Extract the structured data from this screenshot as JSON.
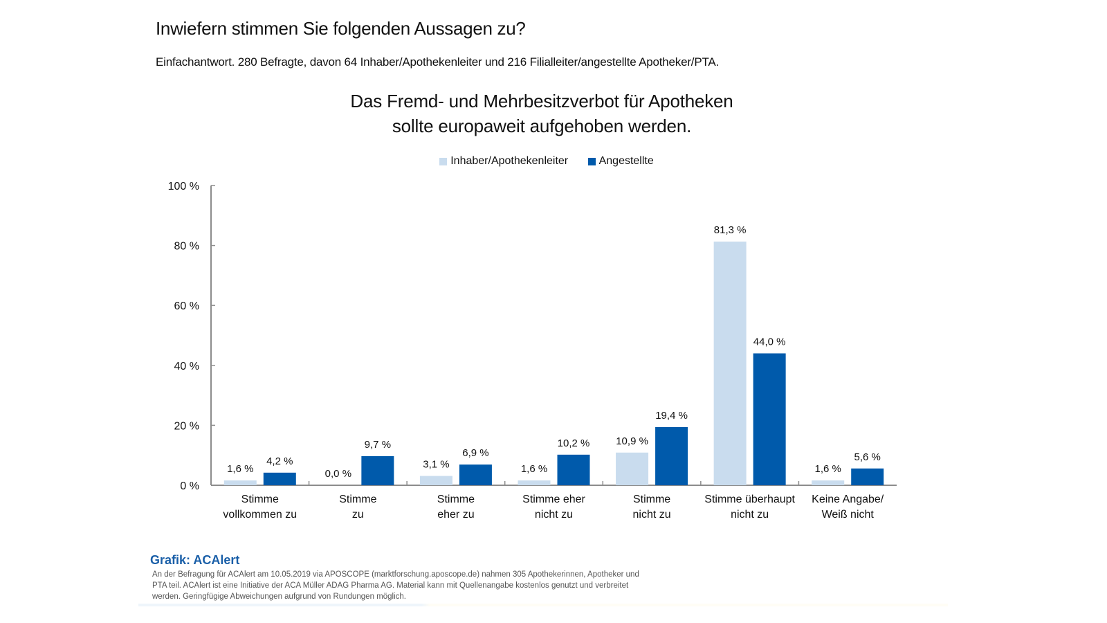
{
  "header": {
    "title": "Inwiefern stimmen Sie folgenden Aussagen zu?",
    "subtitle": "Einfachantwort. 280 Befragte, davon 64 Inhaber/Apothekenleiter und 216 Filialleiter/angestellte Apotheker/PTA."
  },
  "footer": {
    "source_title": "Grafik: ACAlert",
    "source_text": "An der Befragung für ACAlert am 10.05.2019 via APOSCOPE (marktforschung.aposcope.de) nahmen 305 Apothekerinnen, Apotheker und PTA teil. ACAlert ist eine Initiative der ACA Müller ADAG Pharma AG. Material kann mit Quellenangabe kostenlos genutzt und verbreitet werden. Geringfügige Abweichungen aufgrund von Rundungen möglich."
  },
  "chart_data": {
    "type": "bar",
    "title_lines": [
      "Das Fremd- und Mehrbesitzverbot für Apotheken",
      "sollte europaweit aufgehoben werden."
    ],
    "categories": [
      [
        "Stimme",
        "vollkommen zu"
      ],
      [
        "Stimme",
        "zu"
      ],
      [
        "Stimme",
        "eher zu"
      ],
      [
        "Stimme eher",
        "nicht zu"
      ],
      [
        "Stimme",
        "nicht zu"
      ],
      [
        "Stimme überhaupt",
        "nicht zu"
      ],
      [
        "Keine Angabe/",
        "Weiß nicht"
      ]
    ],
    "series": [
      {
        "name": "Inhaber/Apothekenleiter",
        "color": "#c9dcee",
        "values": [
          1.6,
          0.0,
          3.1,
          1.6,
          10.9,
          81.3,
          1.6
        ],
        "labels": [
          "1,6 %",
          "0,0 %",
          "3,1 %",
          "1,6 %",
          "10,9 %",
          "81,3 %",
          "1,6 %"
        ]
      },
      {
        "name": "Angestellte",
        "color": "#005aab",
        "values": [
          4.2,
          9.7,
          6.9,
          10.2,
          19.4,
          44.0,
          5.6
        ],
        "labels": [
          "4,2 %",
          "9,7 %",
          "6,9 %",
          "10,2 %",
          "19,4 %",
          "44,0 %",
          "5,6 %"
        ]
      }
    ],
    "yticks": [
      0,
      20,
      40,
      60,
      80,
      100
    ],
    "ytick_labels": [
      "0 %",
      "20 %",
      "40 %",
      "60 %",
      "80 %",
      "100 %"
    ],
    "ylim": [
      0,
      100
    ],
    "xlabel": "",
    "ylabel": "",
    "legend_position": "top-center",
    "grid": false,
    "axis_color": "#8c8c8c"
  }
}
